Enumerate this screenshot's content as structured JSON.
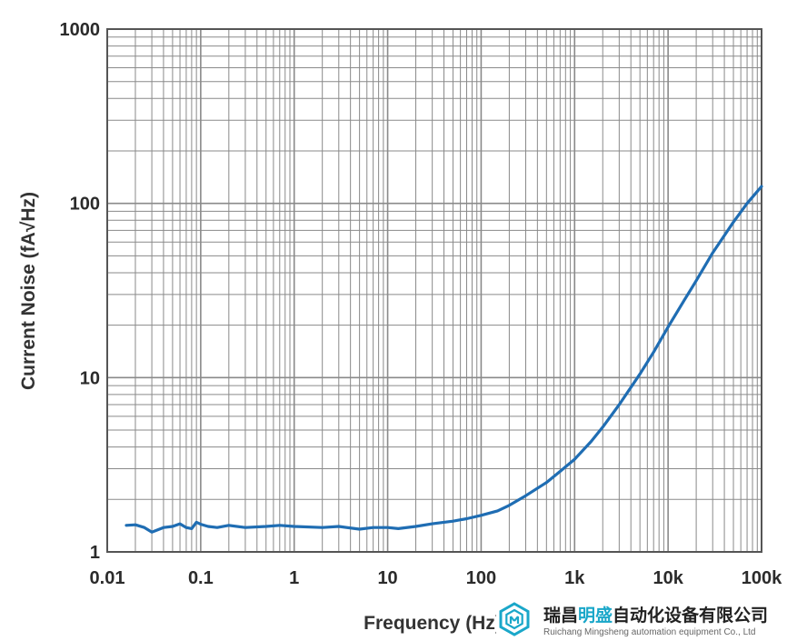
{
  "chart_data": {
    "type": "line",
    "title": "",
    "xlabel": "Frequency (Hz)",
    "ylabel": "Current Noise (fA√Hz)",
    "x_scale": "log",
    "y_scale": "log",
    "xlim": [
      0.01,
      100000
    ],
    "ylim": [
      1,
      1000
    ],
    "grid": true,
    "legend": "none",
    "x_tick_labels": [
      "0.01",
      "0.1",
      "1",
      "10",
      "100",
      "1k",
      "10k",
      "100k"
    ],
    "y_tick_labels": [
      "1",
      "10",
      "100",
      "1000"
    ],
    "colors": {
      "line": "#1f6db3",
      "grid": "#8a8a8a",
      "frame": "#555555"
    },
    "series": [
      {
        "x": [
          0.016,
          0.02,
          0.025,
          0.03,
          0.04,
          0.05,
          0.06,
          0.07,
          0.08,
          0.09,
          0.1,
          0.12,
          0.15,
          0.2,
          0.3,
          0.5,
          0.7,
          1,
          2,
          3,
          5,
          7,
          10,
          13,
          20,
          30,
          50,
          70,
          100,
          150,
          200,
          300,
          500,
          700,
          1000,
          1500,
          2000,
          3000,
          5000,
          7000,
          10000,
          15000,
          20000,
          30000,
          50000,
          70000,
          100000
        ],
        "y": [
          1.42,
          1.43,
          1.38,
          1.3,
          1.38,
          1.4,
          1.45,
          1.38,
          1.36,
          1.48,
          1.44,
          1.4,
          1.38,
          1.42,
          1.38,
          1.4,
          1.42,
          1.4,
          1.38,
          1.4,
          1.35,
          1.38,
          1.38,
          1.36,
          1.4,
          1.45,
          1.5,
          1.55,
          1.62,
          1.72,
          1.85,
          2.1,
          2.5,
          2.9,
          3.4,
          4.3,
          5.2,
          7.0,
          10.5,
          14.0,
          19.5,
          28.0,
          36.0,
          52.0,
          78.0,
          100.0,
          125.0
        ]
      }
    ]
  },
  "watermark": {
    "company_cn_part1": "瑞昌",
    "company_cn_part2": "明盛",
    "company_cn_part3": "自动化设备有限公司",
    "company_en": "Ruichang Mingsheng automation equipment Co., Ltd",
    "icon": "hexagon-logo-icon",
    "colors": {
      "accent": "#1aa7c9",
      "text": "#222222"
    }
  }
}
